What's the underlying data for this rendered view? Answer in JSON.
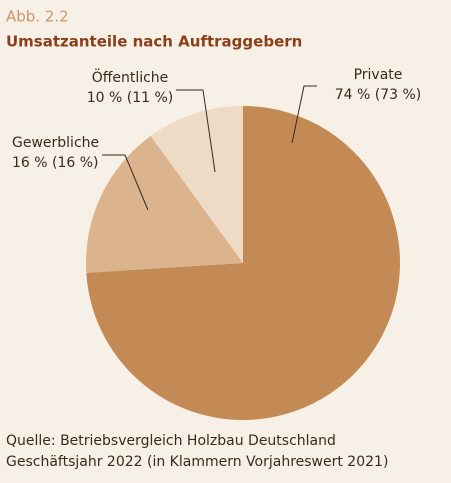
{
  "chart_data": {
    "type": "pie",
    "figure_label": "Abb. 2.2",
    "title": "Umsatzanteile nach Auftraggebern",
    "categories": [
      "Private",
      "Gewerbliche",
      "Öffentliche"
    ],
    "values": [
      74,
      16,
      10
    ],
    "value_labels": [
      "74 % (73 %)",
      "16 % (16 %)",
      "10 % (11 %)"
    ],
    "colors": [
      "#c48a55",
      "#dbb38c",
      "#eedbc5"
    ],
    "source": [
      "Quelle: Betriebsvergleich Holzbau Deutschland",
      "Geschäftsjahr 2022 (in Klammern Vorjahreswert 2021)"
    ]
  }
}
